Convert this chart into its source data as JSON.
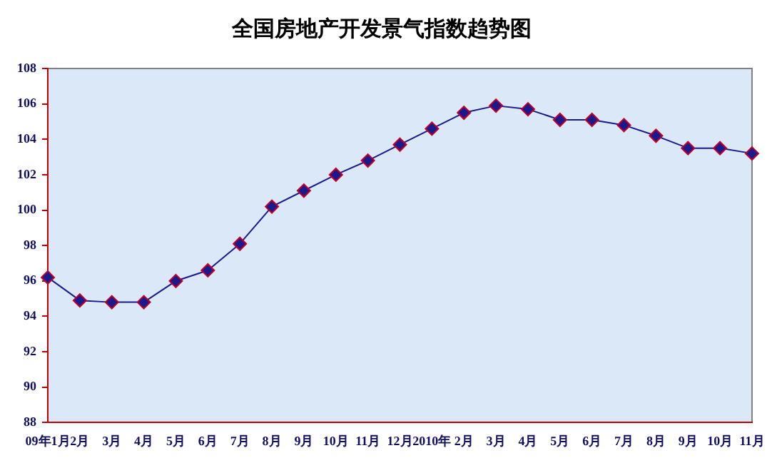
{
  "chart_data": {
    "type": "line",
    "title": "全国房地产开发景气指数趋势图",
    "categories": [
      "09年1月",
      "2月",
      "3月",
      "4月",
      "5月",
      "6月",
      "7月",
      "8月",
      "9月",
      "10月",
      "11月",
      "12月",
      "2010年",
      "2月",
      "3月",
      "4月",
      "5月",
      "6月",
      "7月",
      "8月",
      "9月",
      "10月",
      "11月"
    ],
    "series": [
      {
        "color": "#1a1a8c",
        "values": [
          96.2,
          94.9,
          94.8,
          94.8,
          96.0,
          96.6,
          98.1,
          100.2,
          101.1,
          102.0,
          102.8,
          103.7,
          104.6,
          105.5,
          105.9,
          105.7,
          105.1,
          105.1,
          104.8,
          104.2,
          103.5,
          103.5,
          103.2
        ]
      }
    ],
    "ylim": [
      88,
      108
    ],
    "yticks": [
      88,
      90,
      92,
      94,
      96,
      98,
      100,
      102,
      104,
      106,
      108
    ],
    "grid": false,
    "legend": false,
    "marker": "diamond",
    "line_style": "solid"
  }
}
